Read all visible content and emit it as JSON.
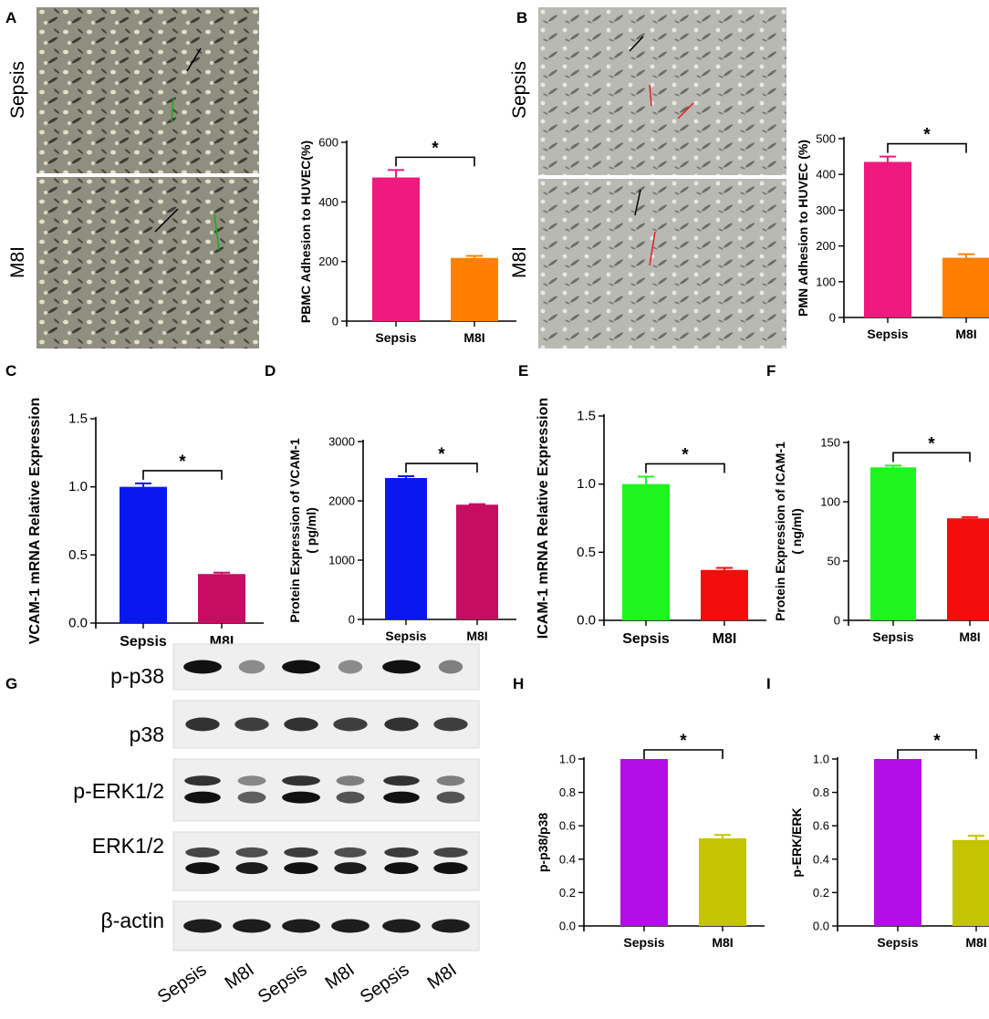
{
  "panels": {
    "A": "A",
    "B": "B",
    "C": "C",
    "D": "D",
    "E": "E",
    "F": "F",
    "G": "G",
    "H": "H",
    "I": "I"
  },
  "micrographs": {
    "A": {
      "top_label": "Sepsis",
      "bottom_label": "M8I"
    },
    "B": {
      "top_label": "Sepsis",
      "bottom_label": "M8I"
    }
  },
  "blot": {
    "rows": [
      "p-p38",
      "p38",
      "p-ERK1/2",
      "ERK1/2",
      "β-actin"
    ],
    "lanes": [
      "Sepsis",
      "M8I",
      "Sepsis",
      "M8I",
      "Sepsis",
      "M8I"
    ]
  },
  "chart_data": [
    {
      "panel": "A",
      "type": "bar",
      "categories": [
        "Sepsis",
        "M8I"
      ],
      "values": [
        482,
        212
      ],
      "errors": [
        25,
        7
      ],
      "colors": [
        "#f0197d",
        "#ff7f00"
      ],
      "ylabel": "PBMC  Adhesion to HUVEC(%)",
      "ylim": [
        0,
        600
      ],
      "yticks": [
        0,
        200,
        400,
        600
      ],
      "significance": "*"
    },
    {
      "panel": "B",
      "type": "bar",
      "categories": [
        "Sepsis",
        "M8I"
      ],
      "values": [
        435,
        167
      ],
      "errors": [
        15,
        10
      ],
      "colors": [
        "#f0197d",
        "#ff7f00"
      ],
      "ylabel": "PMN  Adhesion to HUVEC (%)",
      "ylim": [
        0,
        500
      ],
      "yticks": [
        0,
        100,
        200,
        300,
        400,
        500
      ],
      "significance": "*"
    },
    {
      "panel": "C",
      "type": "bar",
      "categories": [
        "Sepsis",
        "M8I"
      ],
      "values": [
        1.0,
        0.36
      ],
      "errors": [
        0.025,
        0.01
      ],
      "colors": [
        "#0a18f0",
        "#c70c63"
      ],
      "ylabel": "VCAM-1 mRNA Relative Expression",
      "ylim": [
        0,
        1.5
      ],
      "yticks": [
        "0.0",
        "0.5",
        "1.0",
        "1.5"
      ],
      "significance": "*"
    },
    {
      "panel": "D",
      "type": "bar",
      "categories": [
        "Sepsis",
        "M8I"
      ],
      "values": [
        2385,
        1935
      ],
      "errors": [
        30,
        10
      ],
      "colors": [
        "#0a18f0",
        "#c70c63"
      ],
      "ylabel": "Protein Expression of VCAM-1",
      "ylabel2": "( pg/ml)",
      "ylim": [
        0,
        3000
      ],
      "yticks": [
        0,
        1000,
        2000,
        3000
      ],
      "significance": "*"
    },
    {
      "panel": "E",
      "type": "bar",
      "categories": [
        "Sepsis",
        "M8I"
      ],
      "values": [
        1.0,
        0.37
      ],
      "errors": [
        0.055,
        0.015
      ],
      "colors": [
        "#1ef51e",
        "#f50c0c"
      ],
      "ylabel": "ICAM-1 mRNA Relative Expression",
      "ylim": [
        0,
        1.5
      ],
      "yticks": [
        "0.0",
        "0.5",
        "1.0",
        "1.5"
      ],
      "significance": "*"
    },
    {
      "panel": "F",
      "type": "bar",
      "categories": [
        "Sepsis",
        "M8I"
      ],
      "values": [
        129,
        86
      ],
      "errors": [
        1.5,
        1
      ],
      "colors": [
        "#1ef51e",
        "#f50c0c"
      ],
      "ylabel": "Protein Expression of ICAM-1",
      "ylabel2": "( ng/ml)",
      "ylim": [
        0,
        150
      ],
      "yticks": [
        0,
        50,
        100,
        150
      ],
      "significance": "*"
    },
    {
      "panel": "H",
      "type": "bar",
      "categories": [
        "Sepsis",
        "M8I"
      ],
      "values": [
        1.0,
        0.525
      ],
      "errors": [
        0,
        0.02
      ],
      "colors": [
        "#b30ee8",
        "#c4c400"
      ],
      "ylabel": "p-p38/p38",
      "ylim": [
        0,
        1.0
      ],
      "yticks": [
        "0.0",
        "0.2",
        "0.4",
        "0.6",
        "0.8",
        "1.0"
      ],
      "significance": "*"
    },
    {
      "panel": "I",
      "type": "bar",
      "categories": [
        "Sepsis",
        "M8I"
      ],
      "values": [
        1.0,
        0.515
      ],
      "errors": [
        0,
        0.025
      ],
      "colors": [
        "#b30ee8",
        "#c4c400"
      ],
      "ylabel": "p-ERK/ERK",
      "ylim": [
        0,
        1.0
      ],
      "yticks": [
        "0.0",
        "0.2",
        "0.4",
        "0.6",
        "0.8",
        "1.0"
      ],
      "significance": "*"
    }
  ]
}
